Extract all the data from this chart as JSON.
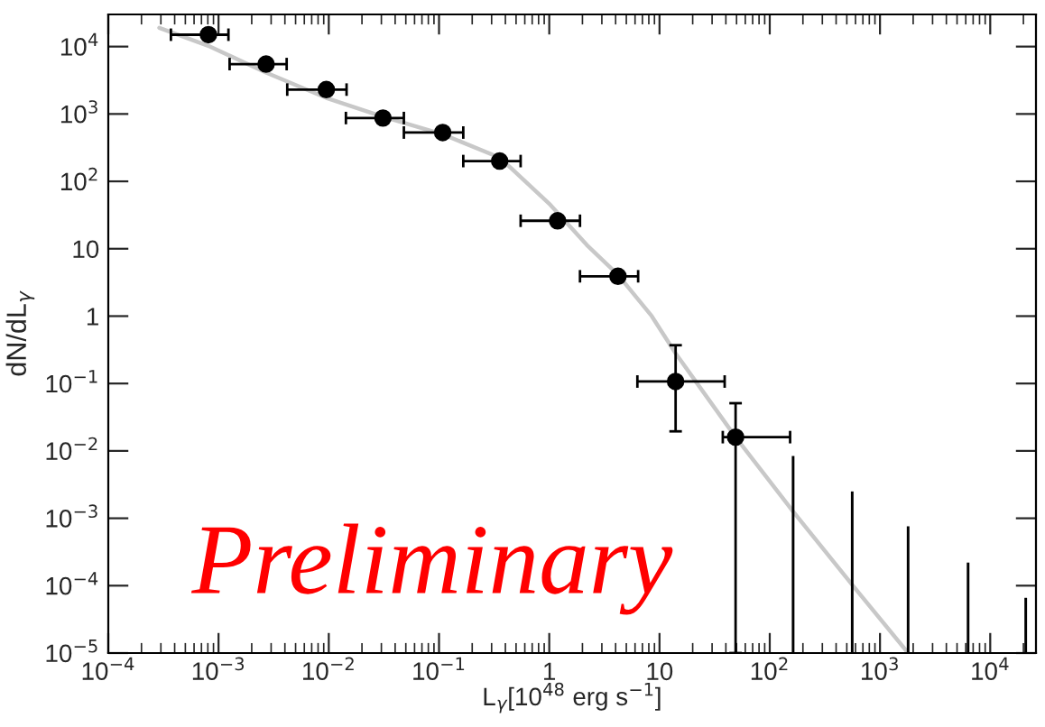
{
  "chart_data": {
    "type": "scatter",
    "xlabel": "L$_{γ}$[10$^{48}$ erg s$^{−1}$]",
    "ylabel": "dN/dL$_{γ}$",
    "log": "xy",
    "grid": false,
    "legend": false,
    "xlim": [
      0.0001,
      26000
    ],
    "ylim": [
      1e-05,
      30000
    ],
    "xticks": [
      {
        "value": 0.0001,
        "label": "10$^{−4}$"
      },
      {
        "value": 0.001,
        "label": "10$^{−3}$"
      },
      {
        "value": 0.01,
        "label": "10$^{−2}$"
      },
      {
        "value": 0.1,
        "label": "10$^{−1}$"
      },
      {
        "value": 1,
        "label": "1"
      },
      {
        "value": 10,
        "label": "10"
      },
      {
        "value": 100,
        "label": "10$^{2}$"
      },
      {
        "value": 1000,
        "label": "10$^{3}$"
      },
      {
        "value": 10000,
        "label": "10$^{4}$"
      }
    ],
    "yticks": [
      {
        "value": 1e-05,
        "label": "10$^{−5}$"
      },
      {
        "value": 0.0001,
        "label": "10$^{−4}$"
      },
      {
        "value": 0.001,
        "label": "10$^{−3}$"
      },
      {
        "value": 0.01,
        "label": "10$^{−2}$"
      },
      {
        "value": 0.1,
        "label": "10$^{−1}$"
      },
      {
        "value": 1,
        "label": "1"
      },
      {
        "value": 10,
        "label": "10"
      },
      {
        "value": 100,
        "label": "10$^{2}$"
      },
      {
        "value": 1000,
        "label": "10$^{3}$"
      },
      {
        "value": 10000,
        "label": "10$^{4}$"
      }
    ],
    "series": [
      {
        "type": "line",
        "color": "#c8c8c8",
        "marker": "none",
        "x": [
          0.00029,
          0.00084,
          0.0027,
          0.0095,
          0.031,
          0.108,
          0.355,
          1.02,
          2.2,
          4.2,
          8.5,
          14,
          49,
          163,
          560,
          1800
        ],
        "values": [
          19000,
          10000,
          4100,
          1730,
          910,
          500,
          225,
          45,
          11.3,
          4.1,
          1.0,
          0.28,
          0.016,
          0.00126,
          0.000103,
          1e-05
        ]
      },
      {
        "type": "scatter",
        "color": "#000000",
        "marker": "circle",
        "x": [
          0.00081,
          0.0027,
          0.0095,
          0.031,
          0.108,
          0.355,
          1.19,
          4.2,
          14,
          49
        ],
        "values": [
          15000,
          5500,
          2300,
          870,
          530,
          200,
          26,
          3.9,
          0.107,
          0.016
        ],
        "errors": [
          null,
          null,
          null,
          null,
          null,
          null,
          null,
          null,
          [
            0.0195,
            0.37
          ],
          [
            1e-05,
            0.051
          ]
        ],
        "xerrors": [
          [
            0.00037,
            0.00123
          ],
          [
            0.00126,
            0.00415
          ],
          [
            0.0042,
            0.0145
          ],
          [
            0.0143,
            0.048
          ],
          [
            0.048,
            0.166
          ],
          [
            0.166,
            0.55
          ],
          [
            0.55,
            1.9
          ],
          [
            1.9,
            6.4
          ],
          [
            6.3,
            39
          ],
          [
            37.5,
            153
          ]
        ]
      },
      {
        "type": "bar",
        "color": "#000000",
        "x": [
          163,
          560,
          1800,
          6300,
          21000
        ],
        "values": [
          0.0084,
          0.0025,
          0.00076,
          0.00022,
          6.6e-05
        ]
      }
    ],
    "annotations": [
      "Preliminary"
    ]
  }
}
